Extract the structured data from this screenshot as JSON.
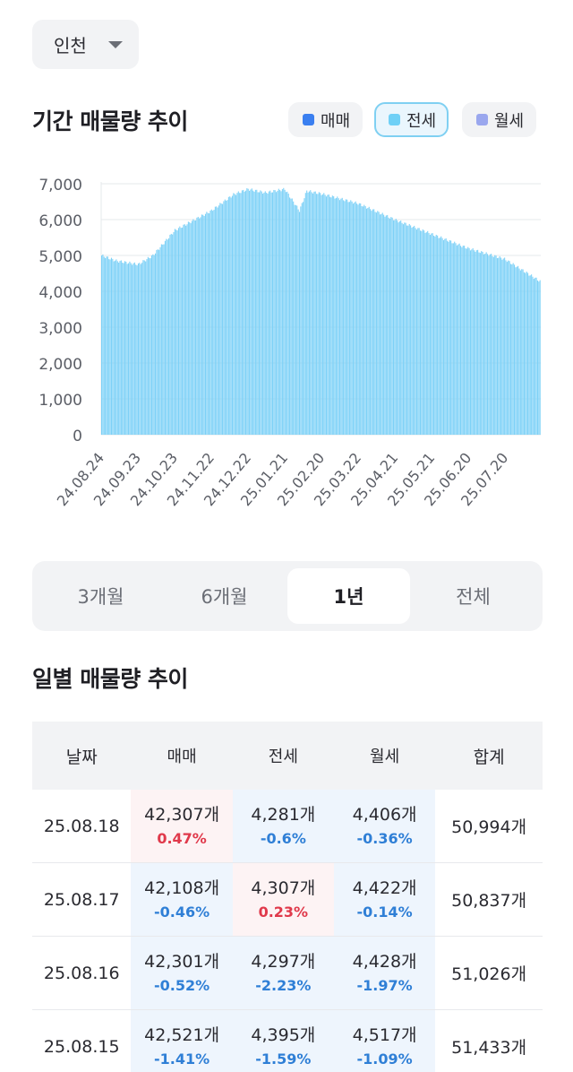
{
  "region": {
    "label": "인천"
  },
  "period_section": {
    "title": "기간 매물량 추이",
    "legend": [
      {
        "label": "매매",
        "color": "#3a7ff0",
        "active": false
      },
      {
        "label": "전세",
        "color": "#6fd0f6",
        "active": true
      },
      {
        "label": "월세",
        "color": "#9aa7ee",
        "active": false
      }
    ]
  },
  "chart_data": {
    "type": "bar",
    "series": [
      {
        "name": "전세",
        "color": "#7dd1f7"
      }
    ],
    "ylim": [
      0,
      7000
    ],
    "yticks": [
      "7,000",
      "6,000",
      "5,000",
      "4,000",
      "3,000",
      "2,000",
      "1,000",
      "0"
    ],
    "xticks": [
      "24.08.24",
      "24.09.23",
      "24.10.23",
      "24.11.22",
      "24.12.22",
      "25.01.21",
      "25.02.20",
      "25.03.22",
      "25.04.21",
      "25.05.21",
      "25.06.20",
      "25.07.20"
    ],
    "trend": [
      {
        "date": "24.08.24",
        "value": 5000
      },
      {
        "date": "24.09.05",
        "value": 4850
      },
      {
        "date": "24.09.23",
        "value": 4750
      },
      {
        "date": "24.10.05",
        "value": 5000
      },
      {
        "date": "24.10.23",
        "value": 5700
      },
      {
        "date": "24.11.22",
        "value": 6250
      },
      {
        "date": "24.12.10",
        "value": 6700
      },
      {
        "date": "24.12.22",
        "value": 6850
      },
      {
        "date": "25.01.05",
        "value": 6750
      },
      {
        "date": "25.01.21",
        "value": 6850
      },
      {
        "date": "25.02.02",
        "value": 6250
      },
      {
        "date": "25.02.08",
        "value": 6800
      },
      {
        "date": "25.02.20",
        "value": 6720
      },
      {
        "date": "25.03.22",
        "value": 6450
      },
      {
        "date": "25.04.21",
        "value": 6000
      },
      {
        "date": "25.05.21",
        "value": 5600
      },
      {
        "date": "25.06.20",
        "value": 5200
      },
      {
        "date": "25.07.20",
        "value": 4900
      },
      {
        "date": "25.08.18",
        "value": 4281
      }
    ]
  },
  "period_tabs": [
    {
      "label": "3개월",
      "active": false
    },
    {
      "label": "6개월",
      "active": false
    },
    {
      "label": "1년",
      "active": true
    },
    {
      "label": "전체",
      "active": false
    }
  ],
  "daily_section": {
    "title": "일별 매물량 추이",
    "columns": [
      "날짜",
      "매매",
      "전세",
      "월세",
      "합계"
    ],
    "rows": [
      {
        "date": "25.08.18",
        "sale": "42,307개",
        "sale_chg": "0.47%",
        "sale_dir": "up",
        "jeonse": "4,281개",
        "jeonse_chg": "-0.6%",
        "jeonse_dir": "down",
        "monthly": "4,406개",
        "monthly_chg": "-0.36%",
        "monthly_dir": "down",
        "total": "50,994개"
      },
      {
        "date": "25.08.17",
        "sale": "42,108개",
        "sale_chg": "-0.46%",
        "sale_dir": "down",
        "jeonse": "4,307개",
        "jeonse_chg": "0.23%",
        "jeonse_dir": "up",
        "monthly": "4,422개",
        "monthly_chg": "-0.14%",
        "monthly_dir": "down",
        "total": "50,837개"
      },
      {
        "date": "25.08.16",
        "sale": "42,301개",
        "sale_chg": "-0.52%",
        "sale_dir": "down",
        "jeonse": "4,297개",
        "jeonse_chg": "-2.23%",
        "jeonse_dir": "down",
        "monthly": "4,428개",
        "monthly_chg": "-1.97%",
        "monthly_dir": "down",
        "total": "51,026개"
      },
      {
        "date": "25.08.15",
        "sale": "42,521개",
        "sale_chg": "-1.41%",
        "sale_dir": "down",
        "jeonse": "4,395개",
        "jeonse_chg": "-1.59%",
        "jeonse_dir": "down",
        "monthly": "4,517개",
        "monthly_chg": "-1.09%",
        "monthly_dir": "down",
        "total": "51,433개"
      }
    ]
  }
}
